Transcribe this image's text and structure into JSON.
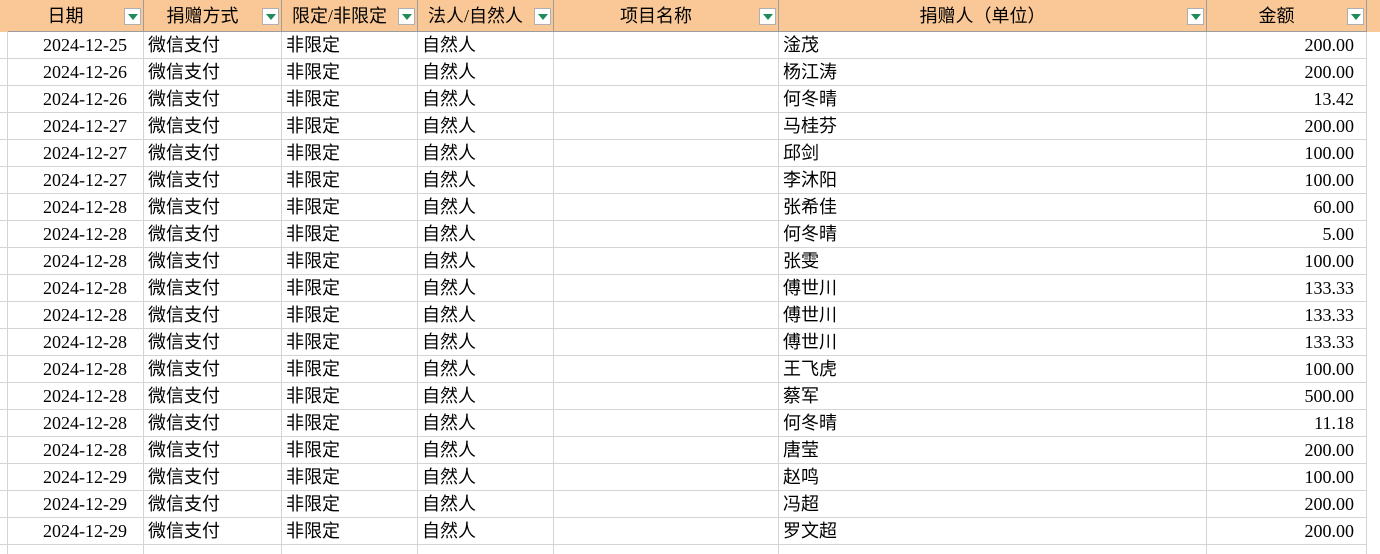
{
  "table": {
    "header": [
      "日期",
      "捐赠方式",
      "限定/非限定",
      "法人/自然人",
      "项目名称",
      "捐赠人（单位）",
      "金额"
    ],
    "rows": [
      [
        "2024-12-25",
        "微信支付",
        "非限定",
        "自然人",
        "",
        "淦茂",
        "200.00"
      ],
      [
        "2024-12-26",
        "微信支付",
        "非限定",
        "自然人",
        "",
        "杨江涛",
        "200.00"
      ],
      [
        "2024-12-26",
        "微信支付",
        "非限定",
        "自然人",
        "",
        "何冬晴",
        "13.42"
      ],
      [
        "2024-12-27",
        "微信支付",
        "非限定",
        "自然人",
        "",
        "马桂芬",
        "200.00"
      ],
      [
        "2024-12-27",
        "微信支付",
        "非限定",
        "自然人",
        "",
        "邱剑",
        "100.00"
      ],
      [
        "2024-12-27",
        "微信支付",
        "非限定",
        "自然人",
        "",
        "李沐阳",
        "100.00"
      ],
      [
        "2024-12-28",
        "微信支付",
        "非限定",
        "自然人",
        "",
        "张希佳",
        "60.00"
      ],
      [
        "2024-12-28",
        "微信支付",
        "非限定",
        "自然人",
        "",
        "何冬晴",
        "5.00"
      ],
      [
        "2024-12-28",
        "微信支付",
        "非限定",
        "自然人",
        "",
        "张雯",
        "100.00"
      ],
      [
        "2024-12-28",
        "微信支付",
        "非限定",
        "自然人",
        "",
        "傅世川",
        "133.33"
      ],
      [
        "2024-12-28",
        "微信支付",
        "非限定",
        "自然人",
        "",
        "傅世川",
        "133.33"
      ],
      [
        "2024-12-28",
        "微信支付",
        "非限定",
        "自然人",
        "",
        "傅世川",
        "133.33"
      ],
      [
        "2024-12-28",
        "微信支付",
        "非限定",
        "自然人",
        "",
        "王飞虎",
        "100.00"
      ],
      [
        "2024-12-28",
        "微信支付",
        "非限定",
        "自然人",
        "",
        "蔡军",
        "500.00"
      ],
      [
        "2024-12-28",
        "微信支付",
        "非限定",
        "自然人",
        "",
        "何冬晴",
        "11.18"
      ],
      [
        "2024-12-28",
        "微信支付",
        "非限定",
        "自然人",
        "",
        "唐莹",
        "200.00"
      ],
      [
        "2024-12-29",
        "微信支付",
        "非限定",
        "自然人",
        "",
        "赵鸣",
        "100.00"
      ],
      [
        "2024-12-29",
        "微信支付",
        "非限定",
        "自然人",
        "",
        "冯超",
        "200.00"
      ],
      [
        "2024-12-29",
        "微信支付",
        "非限定",
        "自然人",
        "",
        "罗文超",
        "200.00"
      ]
    ]
  }
}
